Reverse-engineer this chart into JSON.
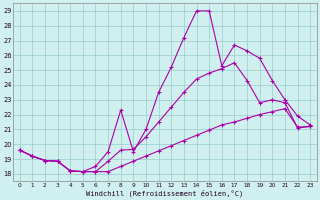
{
  "xlabel": "Windchill (Refroidissement éolien,°C)",
  "bg_color": "#cff0ee",
  "line_color": "#aa00aa",
  "grid_color": "#99cccc",
  "xlim": [
    -0.5,
    23.5
  ],
  "ylim": [
    17.5,
    29.5
  ],
  "xticks": [
    0,
    1,
    2,
    3,
    4,
    5,
    6,
    7,
    8,
    9,
    10,
    11,
    12,
    13,
    14,
    15,
    16,
    17,
    18,
    19,
    20,
    21,
    22,
    23
  ],
  "yticks": [
    18,
    19,
    20,
    21,
    22,
    23,
    24,
    25,
    26,
    27,
    28,
    29
  ],
  "line1_x": [
    0,
    1,
    2,
    3,
    4,
    5,
    6,
    7,
    8,
    9,
    10,
    11,
    12,
    13,
    14,
    15,
    16,
    17,
    18,
    19,
    20,
    21,
    22,
    23
  ],
  "line1_y": [
    19.6,
    19.2,
    18.9,
    18.85,
    18.2,
    18.15,
    18.15,
    18.15,
    18.5,
    18.85,
    19.2,
    19.55,
    19.9,
    20.25,
    20.6,
    20.95,
    21.3,
    21.5,
    21.75,
    22.0,
    22.2,
    22.4,
    21.15,
    21.2
  ],
  "line2_x": [
    0,
    1,
    2,
    3,
    4,
    5,
    6,
    7,
    8,
    9,
    10,
    11,
    12,
    13,
    14,
    15,
    16,
    17,
    18,
    19,
    20,
    21,
    22,
    23
  ],
  "line2_y": [
    19.6,
    19.2,
    18.9,
    18.85,
    18.2,
    18.15,
    18.15,
    18.85,
    19.6,
    19.65,
    20.5,
    21.5,
    22.5,
    23.5,
    24.4,
    24.8,
    25.1,
    25.5,
    24.3,
    22.8,
    23.0,
    22.8,
    21.1,
    21.2
  ],
  "line3_x": [
    0,
    1,
    2,
    3,
    4,
    5,
    6,
    7,
    8,
    9,
    10,
    11,
    12,
    13,
    14,
    15,
    16,
    17,
    18,
    19,
    20,
    21,
    22,
    23
  ],
  "line3_y": [
    19.6,
    19.2,
    18.9,
    18.85,
    18.2,
    18.15,
    18.5,
    19.5,
    22.3,
    19.5,
    21.0,
    23.5,
    25.2,
    27.2,
    29.0,
    29.0,
    25.3,
    26.7,
    26.3,
    25.8,
    24.3,
    23.0,
    21.9,
    21.3
  ]
}
